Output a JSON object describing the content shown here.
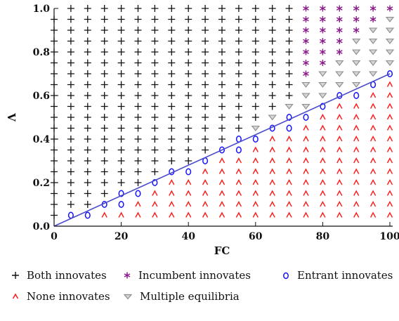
{
  "chart_data": {
    "type": "scatter",
    "xlabel": "FC",
    "ylabel": "Λ",
    "xlim": [
      0,
      100
    ],
    "ylim": [
      0,
      1
    ],
    "xticks": [
      0,
      20,
      40,
      60,
      80,
      100
    ],
    "yticks": [
      0.0,
      0.2,
      0.4,
      0.6,
      0.8,
      1.0
    ],
    "grid_step_x": 5,
    "grid_step_y": 0.05,
    "boundary_line": {
      "x": [
        0,
        100
      ],
      "y": [
        0,
        0.7
      ],
      "color": "#4a4acc"
    },
    "series": [
      {
        "name": "Both innovates",
        "marker": "+",
        "color": "#111111"
      },
      {
        "name": "Incumbent innovates",
        "marker": "*",
        "color": "#8b1a8b"
      },
      {
        "name": "Entrant innovates",
        "marker": "o",
        "color": "#1414ff"
      },
      {
        "name": "None innovates",
        "marker": "^",
        "color": "#ff1a1a"
      },
      {
        "name": "Multiple equilibria",
        "marker": "v",
        "color": "#8c8c8c"
      }
    ],
    "region_rule": {
      "none_innovates": "y < 0.007*x - 0.04",
      "entrant_innovates": "0.007*x - 0.04 <= y < 0.007*x + 0.02",
      "multiple_equilibria": "0.007*x + 0.02 <= y < 0.0134*x - 0.35 (x >= 55)",
      "incumbent_innovates": "y >= 0.0134*x - 0.35 and x >= 75",
      "both_innovates": "otherwise"
    },
    "legend_placement": "bottom"
  }
}
